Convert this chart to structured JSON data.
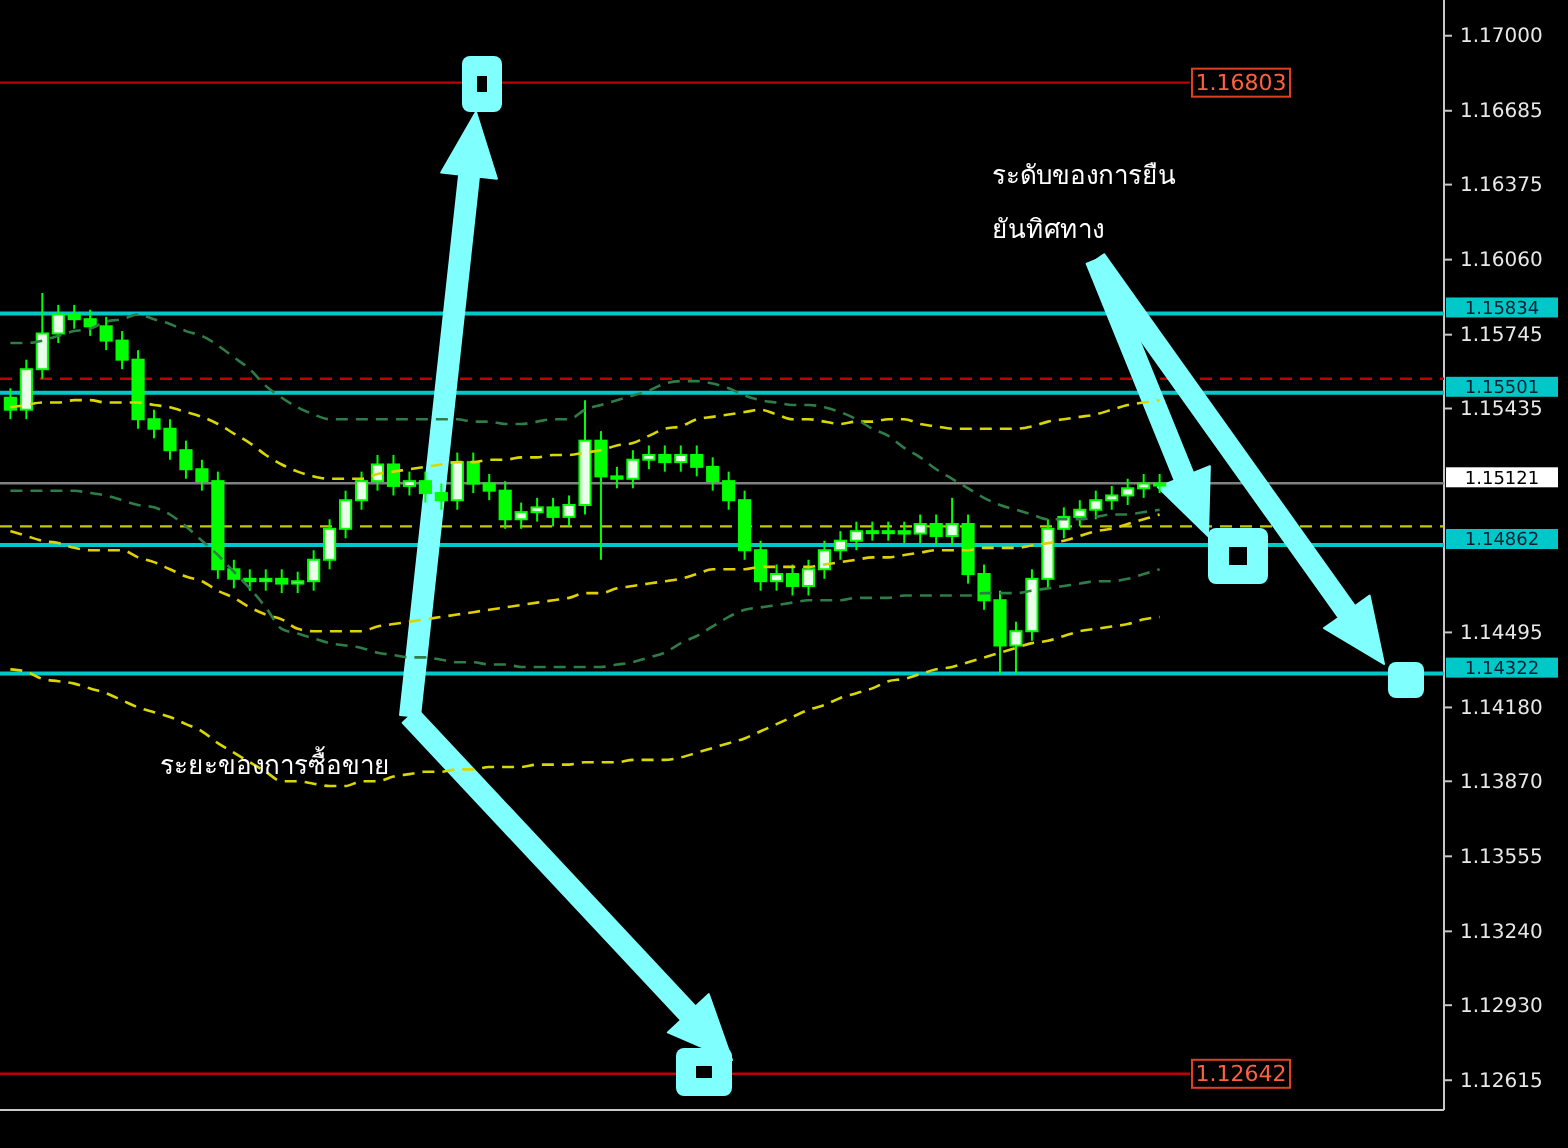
{
  "chart_data": {
    "type": "candlestick",
    "color": "#00ff00",
    "categories": [
      null,
      null,
      null,
      null,
      null,
      null,
      null,
      null,
      null,
      null,
      null,
      null,
      null,
      null,
      null,
      null,
      null,
      null,
      null,
      null,
      null,
      null,
      null,
      null,
      null,
      null,
      null,
      null,
      null,
      null,
      null,
      null,
      null,
      null,
      null,
      null,
      null,
      null,
      null,
      null,
      null,
      null,
      null,
      null,
      null,
      null,
      null,
      null,
      null,
      null,
      null,
      null,
      null,
      null,
      null,
      null,
      null,
      null,
      null,
      null,
      null,
      null,
      null,
      null,
      null,
      null,
      null,
      null,
      null,
      null,
      null,
      null,
      null
    ],
    "ohlc": [
      [
        1.1548,
        1.1552,
        1.1539,
        1.1543
      ],
      [
        1.1543,
        1.1564,
        1.1539,
        1.156
      ],
      [
        1.156,
        1.1592,
        1.1556,
        1.1575
      ],
      [
        1.1575,
        1.1587,
        1.1571,
        1.1583
      ],
      [
        1.1583,
        1.1587,
        1.1577,
        1.1581
      ],
      [
        1.1581,
        1.1585,
        1.1574,
        1.1578
      ],
      [
        1.1578,
        1.1582,
        1.1568,
        1.1572
      ],
      [
        1.1572,
        1.1576,
        1.156,
        1.1564
      ],
      [
        1.1564,
        1.1568,
        1.1535,
        1.1539
      ],
      [
        1.1539,
        1.1543,
        1.1531,
        1.1535
      ],
      [
        1.1535,
        1.1539,
        1.1522,
        1.1526
      ],
      [
        1.1526,
        1.153,
        1.1514,
        1.1518
      ],
      [
        1.1518,
        1.1522,
        1.1509,
        1.1513
      ],
      [
        1.1513,
        1.1517,
        1.1472,
        1.1476
      ],
      [
        1.1476,
        1.148,
        1.1468,
        1.1472
      ],
      [
        1.1472,
        1.1476,
        1.1467,
        1.1471
      ],
      [
        1.1471,
        1.1476,
        1.1467,
        1.1472
      ],
      [
        1.1472,
        1.1476,
        1.1466,
        1.147
      ],
      [
        1.147,
        1.1475,
        1.1466,
        1.1471
      ],
      [
        1.1471,
        1.1484,
        1.1467,
        1.148
      ],
      [
        1.148,
        1.1497,
        1.1476,
        1.1493
      ],
      [
        1.1493,
        1.1509,
        1.1489,
        1.1505
      ],
      [
        1.1505,
        1.1517,
        1.1501,
        1.1513
      ],
      [
        1.1513,
        1.1524,
        1.1509,
        1.152
      ],
      [
        1.152,
        1.1524,
        1.1507,
        1.1511
      ],
      [
        1.1511,
        1.1517,
        1.1507,
        1.1513
      ],
      [
        1.1513,
        1.1517,
        1.1504,
        1.1508
      ],
      [
        1.1508,
        1.1512,
        1.1501,
        1.1505
      ],
      [
        1.1505,
        1.1525,
        1.1501,
        1.1521
      ],
      [
        1.1521,
        1.1525,
        1.1508,
        1.1512
      ],
      [
        1.1512,
        1.1516,
        1.1505,
        1.1509
      ],
      [
        1.1509,
        1.1513,
        1.1493,
        1.1497
      ],
      [
        1.1497,
        1.1504,
        1.1493,
        1.15
      ],
      [
        1.15,
        1.1506,
        1.1496,
        1.1502
      ],
      [
        1.1502,
        1.1506,
        1.1494,
        1.1498
      ],
      [
        1.1498,
        1.1507,
        1.1494,
        1.1503
      ],
      [
        1.1503,
        1.1547,
        1.1499,
        1.153
      ],
      [
        1.153,
        1.1534,
        1.148,
        1.1515
      ],
      [
        1.1515,
        1.1519,
        1.151,
        1.1514
      ],
      [
        1.1514,
        1.1526,
        1.151,
        1.1522
      ],
      [
        1.1522,
        1.1528,
        1.1518,
        1.1524
      ],
      [
        1.1524,
        1.1528,
        1.1517,
        1.1521
      ],
      [
        1.1521,
        1.1528,
        1.1517,
        1.1524
      ],
      [
        1.1524,
        1.1528,
        1.1515,
        1.1519
      ],
      [
        1.1519,
        1.1523,
        1.1509,
        1.1513
      ],
      [
        1.1513,
        1.1517,
        1.1501,
        1.1505
      ],
      [
        1.1505,
        1.1509,
        1.148,
        1.1484
      ],
      [
        1.1484,
        1.1488,
        1.1467,
        1.1471
      ],
      [
        1.1471,
        1.1478,
        1.1467,
        1.1474
      ],
      [
        1.1474,
        1.1478,
        1.1465,
        1.1469
      ],
      [
        1.1469,
        1.148,
        1.1465,
        1.1476
      ],
      [
        1.1476,
        1.1488,
        1.1472,
        1.1484
      ],
      [
        1.1484,
        1.1492,
        1.148,
        1.1488
      ],
      [
        1.1488,
        1.1496,
        1.1484,
        1.1492
      ],
      [
        1.1492,
        1.1496,
        1.1488,
        1.1492
      ],
      [
        1.1492,
        1.1496,
        1.1488,
        1.1492
      ],
      [
        1.1492,
        1.1496,
        1.1487,
        1.1491
      ],
      [
        1.1491,
        1.1499,
        1.1487,
        1.1495
      ],
      [
        1.1495,
        1.1499,
        1.1486,
        1.149
      ],
      [
        1.149,
        1.1506,
        1.1486,
        1.1495
      ],
      [
        1.1495,
        1.1499,
        1.147,
        1.1474
      ],
      [
        1.1474,
        1.1478,
        1.1459,
        1.1463
      ],
      [
        1.1463,
        1.1467,
        1.1432,
        1.1444
      ],
      [
        1.1444,
        1.1454,
        1.1432,
        1.145
      ],
      [
        1.145,
        1.1476,
        1.1446,
        1.1472
      ],
      [
        1.1472,
        1.1497,
        1.1468,
        1.1493
      ],
      [
        1.1493,
        1.1502,
        1.1489,
        1.1498
      ],
      [
        1.1498,
        1.1505,
        1.1494,
        1.1501
      ],
      [
        1.1501,
        1.1509,
        1.1497,
        1.1505
      ],
      [
        1.1505,
        1.1511,
        1.1501,
        1.1507
      ],
      [
        1.1507,
        1.1514,
        1.1503,
        1.151
      ],
      [
        1.151,
        1.1516,
        1.1506,
        1.1512
      ],
      [
        1.1512,
        1.1516,
        1.1508,
        1.1512
      ]
    ],
    "series": [
      {
        "type": "line",
        "color": "#d8d800",
        "line_style": "dashed",
        "values": [
          1.1544,
          1.1545,
          1.1546,
          1.1546,
          1.1547,
          1.1547,
          1.1546,
          1.1546,
          1.1546,
          1.1545,
          1.1544,
          1.1542,
          1.154,
          1.1537,
          1.1533,
          1.1529,
          1.1524,
          1.152,
          1.1517,
          1.1515,
          1.1514,
          1.1514,
          1.1514,
          1.1516,
          1.1517,
          1.1518,
          1.1519,
          1.152,
          1.1521,
          1.1521,
          1.1522,
          1.1522,
          1.1523,
          1.1523,
          1.1524,
          1.1524,
          1.1525,
          1.1526,
          1.1528,
          1.1529,
          1.1532,
          1.1535,
          1.1536,
          1.1539,
          1.154,
          1.1541,
          1.1542,
          1.1543,
          1.1541,
          1.1539,
          1.1539,
          1.1538,
          1.1537,
          1.1538,
          1.1538,
          1.1539,
          1.1539,
          1.1537,
          1.1536,
          1.1535,
          1.1535,
          1.1535,
          1.1535,
          1.1535,
          1.1536,
          1.1538,
          1.1539,
          1.154,
          1.1541,
          1.1543,
          1.1545,
          1.1546,
          1.1547
        ]
      },
      {
        "type": "line",
        "color": "#d8d800",
        "line_style": "dashed",
        "values": [
          1.1434,
          1.1433,
          1.143,
          1.1429,
          1.1428,
          1.1426,
          1.1424,
          1.1421,
          1.1418,
          1.1416,
          1.1414,
          1.1411,
          1.1408,
          1.1403,
          1.1399,
          1.1395,
          1.1391,
          1.1387,
          1.1387,
          1.1386,
          1.1385,
          1.1385,
          1.1387,
          1.1387,
          1.1389,
          1.139,
          1.1391,
          1.1391,
          1.1392,
          1.1392,
          1.1393,
          1.1393,
          1.1393,
          1.1394,
          1.1394,
          1.1394,
          1.1395,
          1.1395,
          1.1395,
          1.1396,
          1.1396,
          1.1396,
          1.1397,
          1.1399,
          1.1401,
          1.1403,
          1.1405,
          1.1408,
          1.1411,
          1.1414,
          1.1417,
          1.1419,
          1.1422,
          1.1424,
          1.1426,
          1.1429,
          1.143,
          1.1432,
          1.1434,
          1.1435,
          1.1437,
          1.1439,
          1.1441,
          1.1443,
          1.1445,
          1.1446,
          1.1448,
          1.145,
          1.1451,
          1.1452,
          1.1453,
          1.1455,
          1.1456
        ]
      },
      {
        "type": "line",
        "color": "#e0d000",
        "line_style": "dashed",
        "values": [
          1.1492,
          1.149,
          1.1488,
          1.1487,
          1.1485,
          1.1484,
          1.1484,
          1.1484,
          1.1481,
          1.1479,
          1.1476,
          1.1473,
          1.1471,
          1.1467,
          1.1464,
          1.146,
          1.1457,
          1.1455,
          1.1451,
          1.145,
          1.145,
          1.145,
          1.145,
          1.1452,
          1.1453,
          1.1454,
          1.1455,
          1.1456,
          1.1457,
          1.1458,
          1.1459,
          1.146,
          1.1461,
          1.1462,
          1.1463,
          1.1464,
          1.1466,
          1.1466,
          1.1468,
          1.1469,
          1.147,
          1.1471,
          1.1472,
          1.1474,
          1.1476,
          1.1476,
          1.1476,
          1.1477,
          1.1477,
          1.1477,
          1.1477,
          1.1478,
          1.1479,
          1.148,
          1.1481,
          1.1481,
          1.1482,
          1.1483,
          1.1484,
          1.1484,
          1.1484,
          1.1485,
          1.1485,
          1.1485,
          1.1486,
          1.1487,
          1.1488,
          1.149,
          1.1492,
          1.1493,
          1.1495,
          1.1497,
          1.1499
        ]
      },
      {
        "type": "line",
        "color": "#2e7d46",
        "line_style": "dashed",
        "values": [
          1.1571,
          1.1571,
          1.1572,
          1.1574,
          1.1576,
          1.1577,
          1.158,
          1.1581,
          1.1583,
          1.1581,
          1.1579,
          1.1576,
          1.1574,
          1.157,
          1.1565,
          1.156,
          1.1553,
          1.1548,
          1.1544,
          1.1541,
          1.1539,
          1.1539,
          1.1539,
          1.1539,
          1.1539,
          1.1539,
          1.1539,
          1.1539,
          1.1539,
          1.1538,
          1.1538,
          1.1537,
          1.1537,
          1.1538,
          1.1539,
          1.1539,
          1.1543,
          1.1545,
          1.1547,
          1.1549,
          1.1551,
          1.1554,
          1.1555,
          1.1555,
          1.1554,
          1.1552,
          1.1549,
          1.1547,
          1.1546,
          1.1545,
          1.1545,
          1.1544,
          1.1542,
          1.1539,
          1.1535,
          1.1532,
          1.1527,
          1.1523,
          1.1518,
          1.1514,
          1.151,
          1.1506,
          1.1503,
          1.1501,
          1.1499,
          1.1497,
          1.1497,
          1.1497,
          1.1498,
          1.1499,
          1.1499,
          1.15,
          1.1501
        ]
      },
      {
        "type": "line",
        "color": "#2e7d46",
        "line_style": "dashed",
        "values": [
          1.1509,
          1.1509,
          1.1509,
          1.1509,
          1.1509,
          1.1508,
          1.1507,
          1.1505,
          1.1503,
          1.1502,
          1.1499,
          1.1494,
          1.1488,
          1.1482,
          1.1475,
          1.1468,
          1.146,
          1.1451,
          1.1449,
          1.1447,
          1.1445,
          1.1444,
          1.1443,
          1.1441,
          1.144,
          1.1439,
          1.1439,
          1.1438,
          1.1437,
          1.1437,
          1.1436,
          1.1436,
          1.1435,
          1.1435,
          1.1435,
          1.1435,
          1.1435,
          1.1435,
          1.1436,
          1.1437,
          1.1439,
          1.1441,
          1.1445,
          1.1448,
          1.1452,
          1.1456,
          1.1459,
          1.146,
          1.1461,
          1.1462,
          1.1463,
          1.1463,
          1.1463,
          1.1464,
          1.1464,
          1.1464,
          1.1465,
          1.1465,
          1.1465,
          1.1465,
          1.1465,
          1.1466,
          1.1466,
          1.1466,
          1.1467,
          1.1468,
          1.1469,
          1.147,
          1.1471,
          1.1471,
          1.1472,
          1.1474,
          1.1476
        ]
      }
    ],
    "ylim": [
      1.1249,
      1.1715
    ],
    "yticks": [
      {
        "value": 1.17,
        "label": "1.17000"
      },
      1.16685,
      1.16375,
      {
        "value": 1.1606,
        "label": "1.16060"
      },
      1.15745,
      1.15435,
      1.14495,
      {
        "value": 1.1418,
        "label": "1.14180"
      },
      {
        "value": 1.1387,
        "label": "1.13870"
      },
      1.13555,
      {
        "value": 1.1324,
        "label": "1.13240"
      },
      {
        "value": 1.1293,
        "label": "1.12930"
      },
      1.12615
    ],
    "tick_labels": "y",
    "ref_lines": [
      {
        "axis": "y",
        "value": 1.16803,
        "label": "1.16803",
        "color": "#c00000"
      },
      {
        "axis": "y",
        "value": 1.12642,
        "label": "1.12642",
        "color": "#c00000"
      },
      {
        "axis": "y",
        "value": 1.1556,
        "color": "#c00000",
        "line_style": "dashed"
      },
      {
        "axis": "y",
        "value": 1.1494,
        "color": "#c8c800",
        "line_style": "dashed"
      },
      {
        "axis": "y",
        "value": 1.15121,
        "label": "1.15121",
        "color": "#808080"
      },
      {
        "axis": "y",
        "value": 1.15834,
        "label": "1.15834",
        "color": "#00c8c8"
      },
      {
        "axis": "y",
        "value": 1.15501,
        "label": "1.15501",
        "color": "#00c8c8"
      },
      {
        "axis": "y",
        "value": 1.14862,
        "label": "1.14862",
        "color": "#00c8c8"
      },
      {
        "axis": "y",
        "value": 1.14322,
        "label": "1.14322",
        "color": "#00c8c8"
      }
    ],
    "annotations": [
      "ระดับของการยืน\nยันทิศทาง",
      "ระยะของการซื้อขาย"
    ]
  }
}
